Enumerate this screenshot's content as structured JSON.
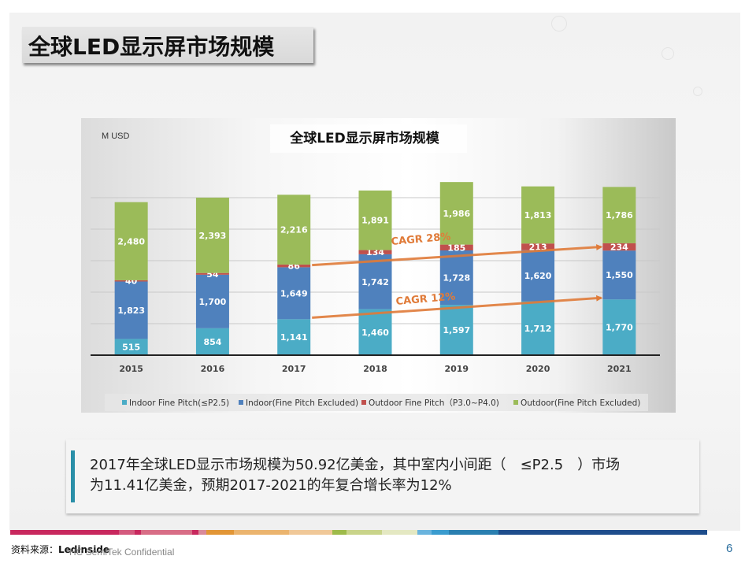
{
  "slide": {
    "title": "全球LED显示屏市场规模",
    "note_line1": "2017年全球LED显示市场规模为50.92亿美金，其中室内小间距（　≤P2.5　）市场",
    "note_line2": "为11.41亿美金，预期2017-2021的年复合增长率为12%",
    "source_label": "资料来源：",
    "source_value": "Ledinside",
    "confidential": "HC SemiTek Confidential",
    "page_number": "6"
  },
  "chart_data": {
    "type": "bar",
    "stacked": true,
    "title": "全球LED显示屏市场规模",
    "unit_label": "M USD",
    "xlabel": "",
    "ylabel": "M USD",
    "ylim": [
      0,
      5000
    ],
    "grid": true,
    "legend_position": "bottom",
    "categories": [
      "2015",
      "2016",
      "2017",
      "2018",
      "2019",
      "2020",
      "2021"
    ],
    "series": [
      {
        "name": "Indoor Fine Pitch(≤P2.5)",
        "color": "#4bacc6",
        "values": [
          515,
          854,
          1141,
          1460,
          1597,
          1712,
          1770
        ],
        "labels": [
          "515",
          "854",
          "1,141",
          "1,460",
          "1,597",
          "1,712",
          "1,770"
        ]
      },
      {
        "name": "Indoor(Fine Pitch Excluded)",
        "color": "#4f81bd",
        "values": [
          1823,
          1700,
          1649,
          1742,
          1728,
          1620,
          1550
        ],
        "labels": [
          "1,823",
          "1,700",
          "1,649",
          "1,742",
          "1,728",
          "1,620",
          "1,550"
        ]
      },
      {
        "name": "Outdoor Fine Pitch（P3.0~P4.0)",
        "color": "#c0504d",
        "values": [
          40,
          54,
          86,
          134,
          185,
          213,
          234
        ],
        "labels": [
          "40",
          "54",
          "86",
          "134",
          "185",
          "213",
          "234"
        ]
      },
      {
        "name": "Outdoor(Fine Pitch Excluded)",
        "color": "#9bbb59",
        "values": [
          2480,
          2393,
          2216,
          1891,
          1986,
          1813,
          1786
        ],
        "labels": [
          "2,480",
          "2,393",
          "2,216",
          "1,891",
          "1,986",
          "1,813",
          "1,786"
        ]
      }
    ],
    "annotations": [
      {
        "text": "CAGR 28%",
        "from_category": "2017",
        "to_category": "2021",
        "series": "Outdoor Fine Pitch（P3.0~P4.0)",
        "color": "#e07b39"
      },
      {
        "text": "CAGR 12%",
        "from_category": "2017",
        "to_category": "2021",
        "series": "Indoor Fine Pitch(≤P2.5)",
        "color": "#e07b39"
      }
    ]
  },
  "footer_stripe_colors": [
    "#c8285e",
    "#d45a7e",
    "#c8285e",
    "#d86d86",
    "#c8285e",
    "#d98a9a",
    "#e29636",
    "#ebb46e",
    "#f0c898",
    "#9ebb4a",
    "#c9d48a",
    "#e4e8c2",
    "#6ab4de",
    "#3a9ccf",
    "#2a7fb0",
    "#1e4d8c"
  ]
}
